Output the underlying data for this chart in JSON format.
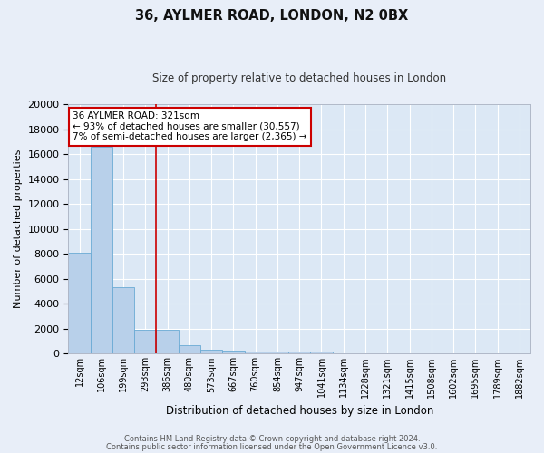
{
  "title1": "36, AYLMER ROAD, LONDON, N2 0BX",
  "title2": "Size of property relative to detached houses in London",
  "xlabel": "Distribution of detached houses by size in London",
  "ylabel": "Number of detached properties",
  "categories": [
    "12sqm",
    "106sqm",
    "199sqm",
    "293sqm",
    "386sqm",
    "480sqm",
    "573sqm",
    "667sqm",
    "760sqm",
    "854sqm",
    "947sqm",
    "1041sqm",
    "1134sqm",
    "1228sqm",
    "1321sqm",
    "1415sqm",
    "1508sqm",
    "1602sqm",
    "1695sqm",
    "1789sqm",
    "1882sqm"
  ],
  "values": [
    8100,
    16600,
    5300,
    1900,
    1900,
    700,
    350,
    250,
    200,
    180,
    160,
    140,
    0,
    0,
    0,
    0,
    0,
    0,
    0,
    0,
    0
  ],
  "bar_color": "#b8d0ea",
  "bar_edge_color": "#6aaad4",
  "vline_x": 3.5,
  "vline_color": "#cc0000",
  "annotation_text": "36 AYLMER ROAD: 321sqm\n← 93% of detached houses are smaller (30,557)\n7% of semi-detached houses are larger (2,365) →",
  "annotation_box_color": "#ffffff",
  "annotation_box_edge": "#cc0000",
  "ylim": [
    0,
    20000
  ],
  "yticks": [
    0,
    2000,
    4000,
    6000,
    8000,
    10000,
    12000,
    14000,
    16000,
    18000,
    20000
  ],
  "bg_color": "#dce8f5",
  "fig_bg_color": "#e8eef8",
  "footer1": "Contains HM Land Registry data © Crown copyright and database right 2024.",
  "footer2": "Contains public sector information licensed under the Open Government Licence v3.0."
}
